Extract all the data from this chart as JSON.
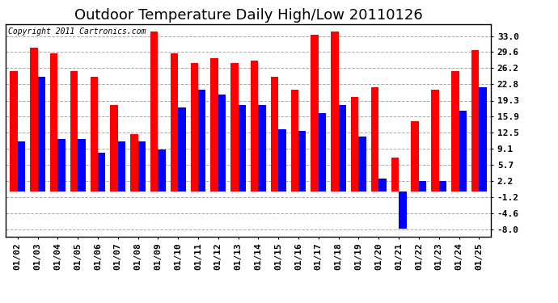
{
  "title": "Outdoor Temperature Daily High/Low 20110126",
  "copyright": "Copyright 2011 Cartronics.com",
  "dates": [
    "01/02",
    "01/03",
    "01/04",
    "01/05",
    "01/06",
    "01/07",
    "01/08",
    "01/09",
    "01/10",
    "01/11",
    "01/12",
    "01/13",
    "01/14",
    "01/15",
    "01/16",
    "01/17",
    "01/18",
    "01/19",
    "01/20",
    "01/21",
    "01/22",
    "01/23",
    "01/24",
    "01/25"
  ],
  "highs": [
    25.6,
    30.6,
    29.4,
    25.6,
    24.4,
    18.3,
    12.2,
    33.9,
    29.4,
    27.2,
    28.3,
    27.2,
    27.8,
    24.4,
    21.7,
    33.3,
    33.9,
    20.0,
    22.2,
    7.2,
    15.0,
    21.7,
    25.6,
    30.0
  ],
  "lows": [
    10.6,
    24.4,
    11.1,
    11.1,
    8.3,
    10.6,
    10.6,
    8.9,
    17.8,
    21.7,
    20.6,
    18.3,
    18.3,
    13.3,
    12.8,
    16.7,
    18.3,
    11.7,
    2.8,
    -7.8,
    2.2,
    2.2,
    17.2,
    22.2
  ],
  "high_color": "#ff0000",
  "low_color": "#0000ff",
  "bg_color": "#ffffff",
  "grid_color": "#aaaaaa",
  "yticks": [
    33.0,
    29.6,
    26.2,
    22.8,
    19.3,
    15.9,
    12.5,
    9.1,
    5.7,
    2.2,
    -1.2,
    -4.6,
    -8.0
  ],
  "ylim": [
    -9.5,
    35.5
  ],
  "bar_width": 0.38,
  "title_fontsize": 13,
  "tick_fontsize": 8,
  "copyright_fontsize": 7
}
